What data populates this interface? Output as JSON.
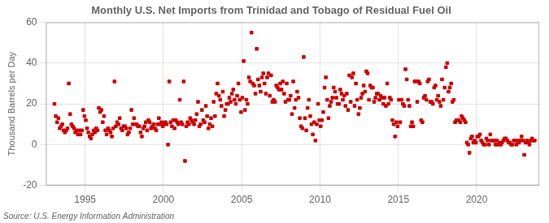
{
  "chart_data": {
    "type": "scatter",
    "title": "Monthly U.S. Net Imports from Trinidad and Tobago of Residual Fuel Oil",
    "ylabel": "Thousand Barrels per Day",
    "annotations": [
      "Source: U.S. Energy Information Administration"
    ],
    "color": "#cc0000",
    "marker": "square",
    "grid": true,
    "xlim": [
      1992.5,
      2024.0
    ],
    "ylim": [
      -20,
      60
    ],
    "xticks": [
      1995,
      2000,
      2005,
      2010,
      2015,
      2020
    ],
    "yticks": [
      -20,
      0,
      20,
      40,
      60
    ],
    "x": [
      1993.042,
      1993.125,
      1993.208,
      1993.292,
      1993.375,
      1993.458,
      1993.542,
      1993.625,
      1993.708,
      1993.792,
      1993.875,
      1993.958,
      1994.042,
      1994.125,
      1994.208,
      1994.292,
      1994.375,
      1994.458,
      1994.542,
      1994.625,
      1994.708,
      1994.792,
      1994.875,
      1994.958,
      1995.042,
      1995.125,
      1995.208,
      1995.292,
      1995.375,
      1995.458,
      1995.542,
      1995.625,
      1995.708,
      1995.792,
      1995.875,
      1995.958,
      1996.042,
      1996.125,
      1996.208,
      1996.292,
      1996.375,
      1996.458,
      1996.542,
      1996.625,
      1996.708,
      1996.792,
      1996.875,
      1996.958,
      1997.042,
      1997.125,
      1997.208,
      1997.292,
      1997.375,
      1997.458,
      1997.542,
      1997.625,
      1997.708,
      1997.792,
      1997.875,
      1997.958,
      1998.042,
      1998.125,
      1998.208,
      1998.292,
      1998.375,
      1998.458,
      1998.542,
      1998.625,
      1998.708,
      1998.792,
      1998.875,
      1998.958,
      1999.042,
      1999.125,
      1999.208,
      1999.292,
      1999.375,
      1999.458,
      1999.542,
      1999.625,
      1999.708,
      1999.792,
      1999.875,
      1999.958,
      2000.042,
      2000.125,
      2000.208,
      2000.292,
      2000.375,
      2000.458,
      2000.542,
      2000.625,
      2000.708,
      2000.792,
      2000.875,
      2000.958,
      2001.042,
      2001.125,
      2001.208,
      2001.292,
      2001.375,
      2001.458,
      2001.542,
      2001.625,
      2001.708,
      2001.792,
      2001.875,
      2001.958,
      2002.042,
      2002.125,
      2002.208,
      2002.292,
      2002.375,
      2002.458,
      2002.542,
      2002.625,
      2002.708,
      2002.792,
      2002.875,
      2002.958,
      2003.042,
      2003.125,
      2003.208,
      2003.292,
      2003.375,
      2003.458,
      2003.542,
      2003.625,
      2003.708,
      2003.792,
      2003.875,
      2003.958,
      2004.042,
      2004.125,
      2004.208,
      2004.292,
      2004.375,
      2004.458,
      2004.542,
      2004.625,
      2004.708,
      2004.792,
      2004.875,
      2004.958,
      2005.042,
      2005.125,
      2005.208,
      2005.292,
      2005.375,
      2005.458,
      2005.542,
      2005.625,
      2005.708,
      2005.792,
      2005.875,
      2005.958,
      2006.042,
      2006.125,
      2006.208,
      2006.292,
      2006.375,
      2006.458,
      2006.542,
      2006.625,
      2006.708,
      2006.792,
      2006.875,
      2006.958,
      2007.042,
      2007.125,
      2007.208,
      2007.292,
      2007.375,
      2007.458,
      2007.542,
      2007.625,
      2007.708,
      2007.792,
      2007.875,
      2007.958,
      2008.042,
      2008.125,
      2008.208,
      2008.292,
      2008.375,
      2008.458,
      2008.542,
      2008.625,
      2008.708,
      2008.792,
      2008.875,
      2008.958,
      2009.042,
      2009.125,
      2009.208,
      2009.292,
      2009.375,
      2009.458,
      2009.542,
      2009.625,
      2009.708,
      2009.792,
      2009.875,
      2009.958,
      2010.042,
      2010.125,
      2010.208,
      2010.292,
      2010.375,
      2010.458,
      2010.542,
      2010.625,
      2010.708,
      2010.792,
      2010.875,
      2010.958,
      2011.042,
      2011.125,
      2011.208,
      2011.292,
      2011.375,
      2011.458,
      2011.542,
      2011.625,
      2011.708,
      2011.792,
      2011.875,
      2011.958,
      2012.042,
      2012.125,
      2012.208,
      2012.292,
      2012.375,
      2012.458,
      2012.542,
      2012.625,
      2012.708,
      2012.792,
      2012.875,
      2012.958,
      2013.042,
      2013.125,
      2013.208,
      2013.292,
      2013.375,
      2013.458,
      2013.542,
      2013.625,
      2013.708,
      2013.792,
      2013.875,
      2013.958,
      2014.042,
      2014.125,
      2014.208,
      2014.292,
      2014.375,
      2014.458,
      2014.542,
      2014.625,
      2014.708,
      2014.792,
      2014.875,
      2014.958,
      2015.042,
      2015.125,
      2015.208,
      2015.292,
      2015.375,
      2015.458,
      2015.542,
      2015.625,
      2015.708,
      2015.792,
      2015.875,
      2015.958,
      2016.042,
      2016.125,
      2016.208,
      2016.292,
      2016.375,
      2016.458,
      2016.542,
      2016.625,
      2016.708,
      2016.792,
      2016.875,
      2016.958,
      2017.042,
      2017.125,
      2017.208,
      2017.292,
      2017.375,
      2017.458,
      2017.542,
      2017.625,
      2017.708,
      2017.792,
      2017.875,
      2017.958,
      2018.042,
      2018.125,
      2018.208,
      2018.292,
      2018.375,
      2018.458,
      2018.542,
      2018.625,
      2018.708,
      2018.792,
      2018.875,
      2018.958,
      2019.042,
      2019.125,
      2019.208,
      2019.292,
      2019.375,
      2019.458,
      2019.542,
      2019.625,
      2019.708,
      2019.792,
      2019.875,
      2019.958,
      2020.042,
      2020.125,
      2020.208,
      2020.292,
      2020.375,
      2020.458,
      2020.542,
      2020.625,
      2020.708,
      2020.792,
      2020.875,
      2020.958,
      2021.042,
      2021.125,
      2021.208,
      2021.292,
      2021.375,
      2021.458,
      2021.542,
      2021.625,
      2021.708,
      2021.792,
      2021.875,
      2021.958,
      2022.042,
      2022.125,
      2022.208,
      2022.292,
      2022.375,
      2022.458,
      2022.542,
      2022.625,
      2022.708,
      2022.792,
      2022.875,
      2022.958,
      2023.042,
      2023.125,
      2023.208,
      2023.292,
      2023.375,
      2023.458,
      2023.542,
      2023.625,
      2023.708
    ],
    "values": [
      20,
      14,
      11,
      13,
      8,
      9,
      10,
      7,
      6,
      7,
      8,
      30,
      15,
      10,
      9,
      8,
      6,
      7,
      5,
      7,
      5,
      7,
      17,
      14,
      12,
      8,
      6,
      4,
      3,
      5,
      7,
      6,
      8,
      7,
      18,
      16,
      17,
      11,
      14,
      7,
      5,
      8,
      7,
      6,
      4,
      8,
      31,
      9,
      11,
      10,
      13,
      8,
      7,
      9,
      9,
      8,
      5,
      6,
      8,
      17,
      10,
      13,
      10,
      10,
      9,
      9,
      6,
      4,
      8,
      9,
      11,
      7,
      12,
      11,
      8,
      9,
      10,
      8,
      7,
      10,
      13,
      10,
      11,
      9,
      10,
      11,
      10,
      0,
      31,
      11,
      9,
      12,
      8,
      12,
      11,
      10,
      22,
      11,
      10,
      31,
      -8,
      9,
      11,
      10,
      13,
      12,
      11,
      10,
      12,
      15,
      21,
      9,
      10,
      17,
      12,
      11,
      19,
      14,
      8,
      10,
      13,
      9,
      21,
      14,
      25,
      30,
      24,
      22,
      19,
      26,
      14,
      17,
      20,
      20,
      23,
      21,
      25,
      27,
      22,
      20,
      24,
      30,
      22,
      16,
      23,
      41,
      17,
      22,
      20,
      33,
      31,
      55,
      30,
      29,
      25,
      47,
      32,
      29,
      26,
      33,
      35,
      30,
      25,
      33,
      35,
      24,
      34,
      21,
      22,
      21,
      29,
      28,
      27,
      30,
      27,
      31,
      25,
      21,
      30,
      22,
      22,
      24,
      15,
      31,
      18,
      22,
      26,
      23,
      13,
      9,
      8,
      43,
      13,
      7,
      18,
      22,
      14,
      10,
      5,
      11,
      2,
      10,
      20,
      12,
      9,
      12,
      16,
      28,
      33,
      22,
      13,
      19,
      21,
      23,
      28,
      26,
      23,
      20,
      20,
      27,
      25,
      22,
      24,
      19,
      25,
      17,
      34,
      21,
      33,
      35,
      19,
      30,
      22,
      15,
      18,
      23,
      25,
      29,
      26,
      36,
      35,
      22,
      29,
      28,
      28,
      21,
      23,
      25,
      25,
      22,
      24,
      23,
      20,
      23,
      19,
      30,
      20,
      23,
      22,
      12,
      10,
      4,
      11,
      9,
      22,
      11,
      22,
      20,
      19,
      37,
      32,
      22,
      19,
      9,
      11,
      9,
      31,
      31,
      21,
      31,
      30,
      12,
      11,
      23,
      24,
      22,
      31,
      32,
      21,
      21,
      20,
      28,
      29,
      22,
      24,
      21,
      19,
      32,
      22,
      28,
      38,
      40,
      26,
      28,
      30,
      21,
      22,
      11,
      12,
      12,
      12,
      11,
      14,
      13,
      12,
      11,
      1,
      0,
      -4,
      3,
      4,
      1,
      2,
      1,
      4,
      4,
      5,
      2,
      1,
      0,
      0,
      3,
      2,
      0,
      5,
      2,
      2,
      2,
      0,
      2,
      0,
      1,
      0,
      1,
      2,
      3,
      3,
      2,
      1,
      1,
      0,
      0,
      2,
      2,
      0,
      2,
      1,
      2,
      4,
      2,
      -5,
      1,
      2,
      1,
      0,
      2,
      3,
      2,
      2
    ]
  }
}
